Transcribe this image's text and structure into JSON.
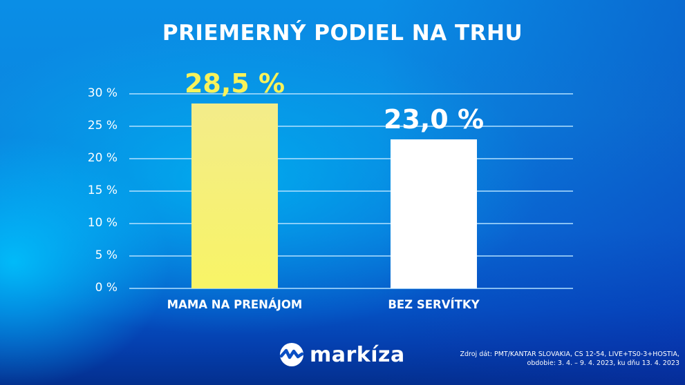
{
  "title": "PRIEMERNÝ PODIEL NA TRHU",
  "chart_data": {
    "type": "bar",
    "title": "PRIEMERNÝ PODIEL NA TRHU",
    "categories": [
      "MAMA NA PRENÁJOM",
      "BEZ SERVÍTKY"
    ],
    "values": [
      28.5,
      23.0
    ],
    "value_labels": [
      "28,5 %",
      "23,0 %"
    ],
    "bar_colors": [
      "#f7ef6e",
      "#ffffff"
    ],
    "value_label_colors": [
      "#f8f25a",
      "#ffffff"
    ],
    "xlabel": "",
    "ylabel": "",
    "ylim": [
      0,
      30
    ],
    "yticks": [
      "0 %",
      "5 %",
      "10 %",
      "15 %",
      "20 %",
      "25 %",
      "30 %"
    ],
    "grid": true,
    "legend": null
  },
  "logo": {
    "text": "markíza"
  },
  "source": {
    "line1": "Zdroj dát: PMT/KANTAR SLOVAKIA, CS 12-54, LIVE+TS0-3+HOSTIA,",
    "line2": "obdobie: 3. 4. – 9. 4. 2023, ku dňu 13. 4. 2023"
  }
}
